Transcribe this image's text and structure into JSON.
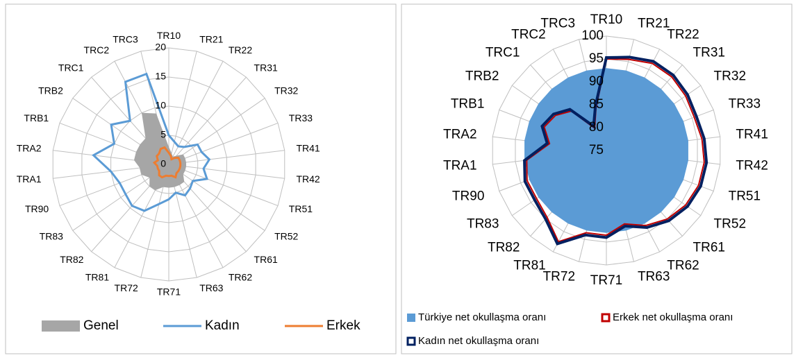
{
  "chart_data": [
    {
      "type": "radar",
      "categories": [
        "TR10",
        "TR21",
        "TR22",
        "TR31",
        "TR32",
        "TR33",
        "TR41",
        "TR42",
        "TR51",
        "TR52",
        "TR61",
        "TR62",
        "TR63",
        "TR71",
        "TR72",
        "TR81",
        "TR82",
        "TR83",
        "TR90",
        "TRA1",
        "TRA2",
        "TRB1",
        "TRB2",
        "TRC1",
        "TRC2",
        "TRC3"
      ],
      "ylim": [
        0,
        20
      ],
      "yticks": [
        0,
        5,
        10,
        15,
        20
      ],
      "grid": true,
      "legend": "bottom",
      "series": [
        {
          "name": "Genel",
          "color": "#a6a6a6",
          "style": "area",
          "values": [
            3,
            2,
            1.5,
            2,
            3,
            3,
            3,
            3,
            3,
            3,
            4,
            4,
            4,
            4,
            4,
            5,
            5,
            4,
            5,
            5,
            6,
            6,
            6,
            6,
            10,
            9
          ]
        },
        {
          "name": "Kadın",
          "color": "#5b9bd5",
          "style": "line",
          "values": [
            5,
            4,
            3.5,
            4,
            6,
            6,
            7,
            6,
            7,
            5,
            5.5,
            6,
            5,
            6,
            7,
            9,
            9.5,
            9,
            9,
            10,
            13,
            10,
            12,
            10,
            16,
            16
          ]
        },
        {
          "name": "Erkek",
          "color": "#ed7d31",
          "style": "line",
          "values": [
            2,
            1.5,
            1,
            1.5,
            2,
            2,
            2,
            2,
            2,
            2,
            2,
            2.5,
            2,
            2,
            2,
            2.5,
            2.5,
            2,
            2,
            2,
            2.5,
            2,
            2.5,
            2.5,
            3,
            3
          ]
        }
      ]
    },
    {
      "type": "radar",
      "categories": [
        "TR10",
        "TR21",
        "TR22",
        "TR31",
        "TR32",
        "TR33",
        "TR41",
        "TR42",
        "TR51",
        "TR52",
        "TR61",
        "TR62",
        "TR63",
        "TR71",
        "TR72",
        "TR81",
        "TR82",
        "TR83",
        "TR90",
        "TRA1",
        "TRA2",
        "TRB1",
        "TRB2",
        "TRC1",
        "TRC2",
        "TRC3"
      ],
      "ylim": [
        75,
        100
      ],
      "yticks": [
        75,
        80,
        85,
        90,
        95,
        100
      ],
      "grid": true,
      "legend": "bottom",
      "series": [
        {
          "name": "Türkiye net okullaşma oranı",
          "color": "#5b9bd5",
          "style": "area",
          "values": [
            93,
            93,
            93,
            93,
            93,
            93,
            93,
            93,
            93,
            93,
            93,
            93,
            93,
            93,
            93,
            93,
            93,
            93,
            93,
            93,
            93,
            93,
            93,
            93,
            93,
            93
          ]
        },
        {
          "name": "Erkek net okullaşma oranı",
          "color": "#c00000",
          "style": "line",
          "values": [
            95,
            95.5,
            96.5,
            96.5,
            96,
            95.5,
            96,
            96.5,
            96.5,
            96,
            95,
            93.5,
            91.5,
            93.5,
            93.5,
            97.5,
            94.5,
            93.5,
            93.5,
            92.5,
            87.5,
            89.5,
            88.5,
            86.5,
            80.5,
            84.5
          ]
        },
        {
          "name": "Kadın net okullaşma oranı",
          "color": "#002060",
          "style": "line",
          "values": [
            95.3,
            96,
            97,
            97,
            96.5,
            96,
            96.5,
            97,
            97,
            96.5,
            95.5,
            94,
            92,
            94,
            94,
            98,
            95,
            94,
            94,
            93,
            88,
            90,
            89,
            87,
            81,
            85
          ]
        }
      ]
    }
  ]
}
